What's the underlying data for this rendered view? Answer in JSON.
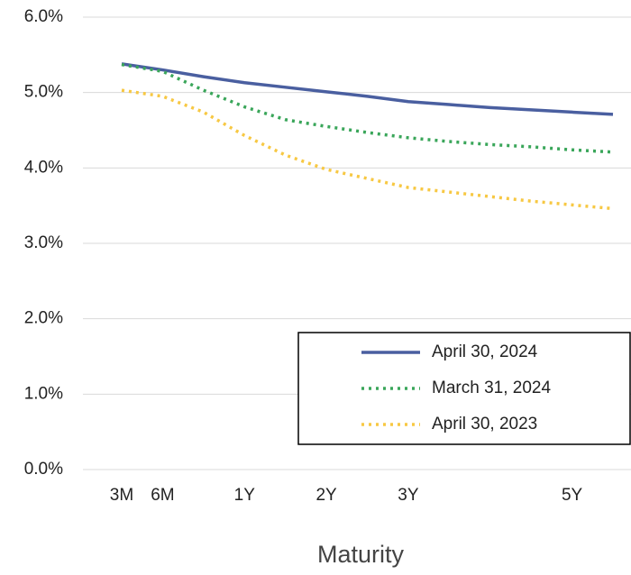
{
  "chart_data": {
    "type": "line",
    "xlabel": "Maturity",
    "categories": [
      "3M",
      "6M",
      null,
      "1Y",
      null,
      "2Y",
      null,
      "3Y",
      null,
      null,
      null,
      "5Y",
      null
    ],
    "series": [
      {
        "name": "April 30, 2024",
        "color": "#4a5fa0",
        "dash": "solid",
        "values": [
          5.38,
          5.3,
          5.21,
          5.13,
          5.07,
          5.01,
          4.95,
          4.88,
          4.84,
          4.8,
          4.77,
          4.74,
          4.71
        ]
      },
      {
        "name": "March 31, 2024",
        "color": "#3aa65a",
        "dash": "dotted",
        "values": [
          5.37,
          5.28,
          5.03,
          4.81,
          4.64,
          4.55,
          4.47,
          4.4,
          4.35,
          4.31,
          4.28,
          4.24,
          4.21
        ]
      },
      {
        "name": "April 30, 2023",
        "color": "#f7c843",
        "dash": "dotted",
        "values": [
          5.03,
          4.95,
          4.74,
          4.43,
          4.17,
          3.98,
          3.86,
          3.74,
          3.68,
          3.62,
          3.56,
          3.51,
          3.46
        ]
      }
    ],
    "ylim": [
      0,
      6
    ],
    "yticks": [
      {
        "value": 0,
        "label": "0.0%"
      },
      {
        "value": 1,
        "label": "1.0%"
      },
      {
        "value": 2,
        "label": "2.0%"
      },
      {
        "value": 3,
        "label": "3.0%"
      },
      {
        "value": 4,
        "label": "4.0%"
      },
      {
        "value": 5,
        "label": "5.0%"
      },
      {
        "value": 6,
        "label": "6.0%"
      }
    ],
    "grid": true,
    "legend": "lower right"
  }
}
